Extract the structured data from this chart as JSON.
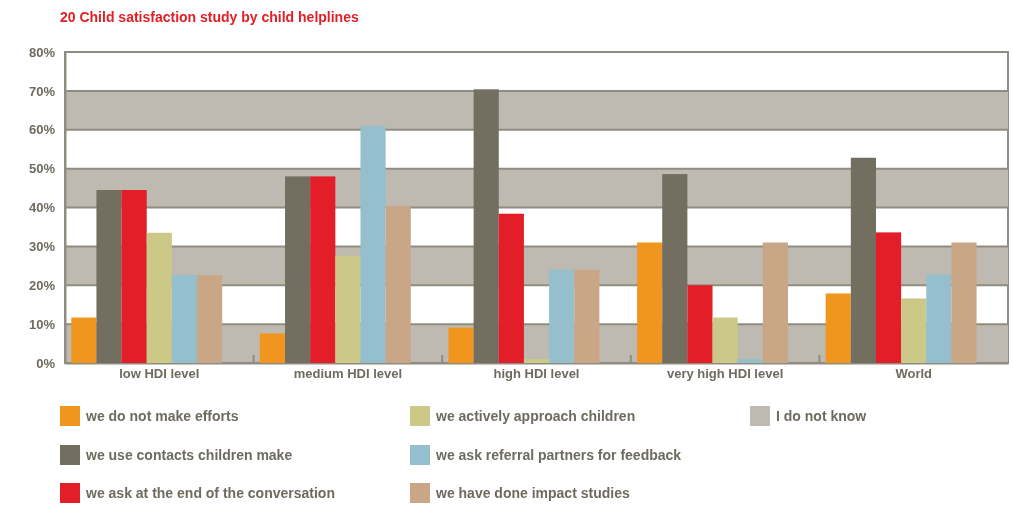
{
  "chart_data": {
    "type": "bar",
    "title": "20 Child satisfaction study by child helplines",
    "categories": [
      "low HDI level",
      "medium HDI level",
      "high HDI level",
      "very high HDI level",
      "World"
    ],
    "series": [
      {
        "name": "we do not make efforts",
        "color": "#f0961e",
        "values": [
          11.7,
          7.6,
          9.1,
          31,
          17.9
        ]
      },
      {
        "name": "we use contacts children make",
        "color": "#726f60",
        "values": [
          44.5,
          48,
          70.4,
          48.6,
          52.8
        ]
      },
      {
        "name": "we ask at the end of the conversation",
        "color": "#e31e28",
        "values": [
          44.5,
          48,
          38.4,
          20,
          33.6
        ]
      },
      {
        "name": "we actively approach children",
        "color": "#cbc888",
        "values": [
          33.5,
          27.6,
          1,
          11.7,
          16.6
        ]
      },
      {
        "name": "we ask referral partners for feedback",
        "color": "#95bfcd",
        "values": [
          22.6,
          61,
          24,
          1,
          22.8
        ]
      },
      {
        "name": "we have done impact studies",
        "color": "#c9a686",
        "values": [
          22.6,
          40.4,
          24,
          31,
          31
        ]
      },
      {
        "name": "I do not know",
        "color": "#bebab1",
        "values": [
          0,
          0,
          0,
          0,
          0
        ]
      }
    ],
    "ylim": [
      0,
      80
    ],
    "yticks": [
      {
        "value": 0,
        "label": "0%"
      },
      {
        "value": 10,
        "label": "10%"
      },
      {
        "value": 20,
        "label": "20%"
      },
      {
        "value": 30,
        "label": "30%"
      },
      {
        "value": 40,
        "label": "40%"
      },
      {
        "value": 50,
        "label": "50%"
      },
      {
        "value": 60,
        "label": "60%"
      },
      {
        "value": 70,
        "label": "70%"
      },
      {
        "value": 80,
        "label": "80%"
      }
    ],
    "grid": true,
    "legend": "bottom"
  }
}
